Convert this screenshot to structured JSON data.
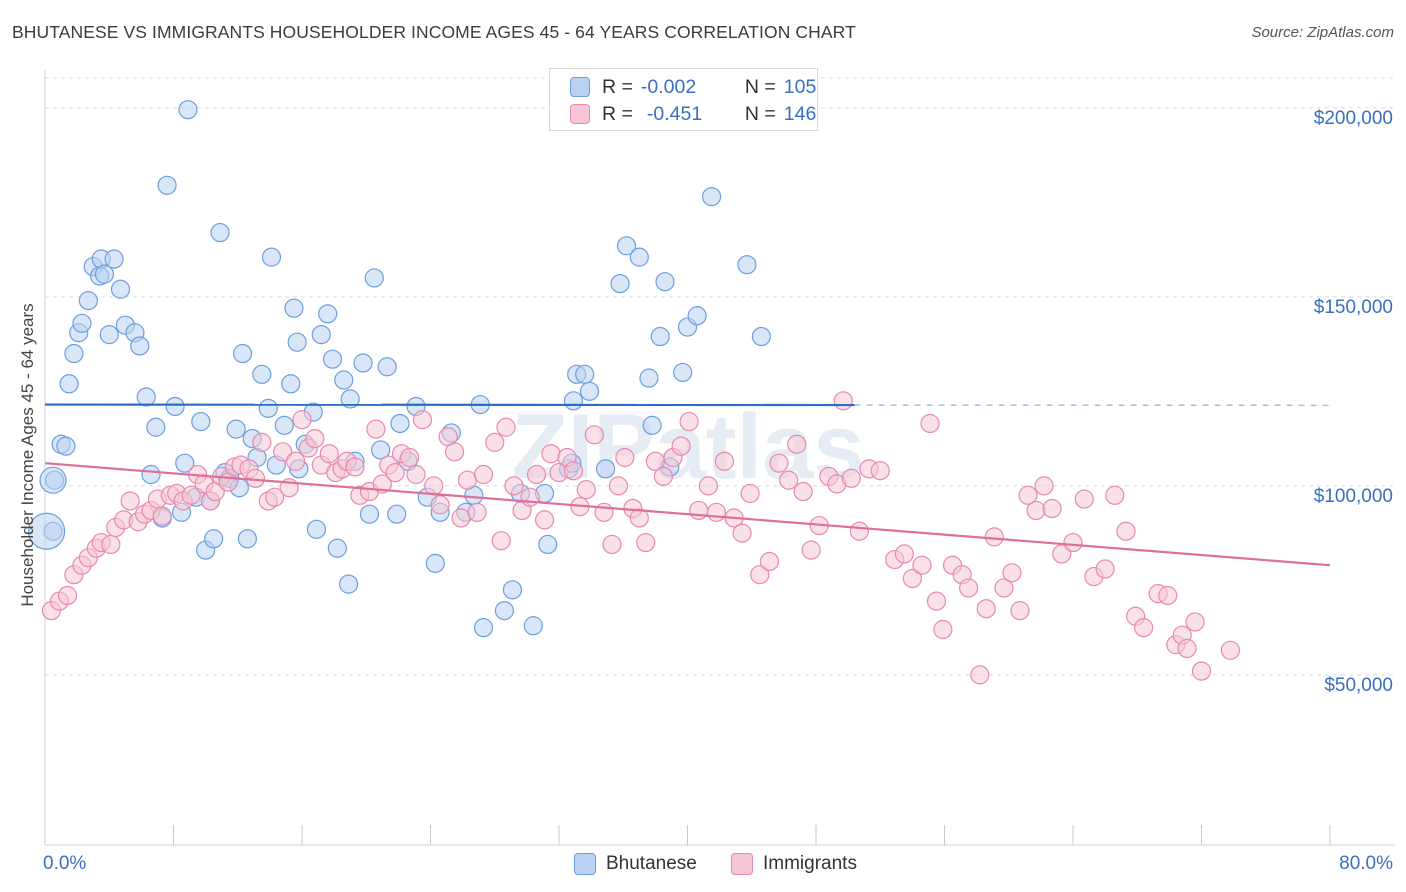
{
  "title": "BHUTANESE VS IMMIGRANTS HOUSEHOLDER INCOME AGES 45 - 64 YEARS CORRELATION CHART",
  "source": "Source: ZipAtlas.com",
  "watermark": "ZIPatlas",
  "colors": {
    "blue": "#6a9fdf",
    "blue_fill": "#b9d2f1",
    "blue_line": "#2a6fc4",
    "pink": "#e889ac",
    "pink_fill": "#f6c6d6",
    "pink_line": "#df6f98",
    "tick_text": "#3a6fc0",
    "grid": "#d7dbe2"
  },
  "stats": [
    {
      "r_label": "R =",
      "r_value": "-0.002",
      "n_label": "N =",
      "n_value": "105",
      "color_key": "blue"
    },
    {
      "r_label": "R =",
      "r_value": "-0.451",
      "n_label": "N =",
      "n_value": "146",
      "color_key": "pink"
    }
  ],
  "legend": [
    "Bhutanese",
    "Immigrants"
  ],
  "chart_data": {
    "type": "scatter",
    "title": "BHUTANESE VS IMMIGRANTS HOUSEHOLDER INCOME AGES 45 - 64 YEARS CORRELATION CHART",
    "xlabel": "",
    "ylabel": "Householder Income Ages 45 - 64 years",
    "xlim": [
      0,
      80
    ],
    "ylim": [
      5000,
      210000
    ],
    "x_tick_labels": [
      "0.0%",
      "80.0%"
    ],
    "y_ticks": [
      50000,
      100000,
      150000,
      200000
    ],
    "y_tick_labels": [
      "$50,000",
      "$100,000",
      "$150,000",
      "$200,000"
    ],
    "grid": true,
    "legend_position": "bottom",
    "series": [
      {
        "name": "Bhutanese",
        "trend": {
          "x0": 0,
          "y0": 121500,
          "x1": 80,
          "y1": 121300,
          "solid_until": 50.4
        },
        "points": [
          [
            0.5,
            88000
          ],
          [
            0.6,
            101500
          ],
          [
            1.0,
            111000
          ],
          [
            1.3,
            110500
          ],
          [
            1.5,
            127000
          ],
          [
            1.8,
            135000
          ],
          [
            2.1,
            140500
          ],
          [
            2.3,
            143000
          ],
          [
            2.7,
            149000
          ],
          [
            3.0,
            158000
          ],
          [
            3.4,
            155500
          ],
          [
            3.5,
            160000
          ],
          [
            3.7,
            156000
          ],
          [
            4.0,
            140000
          ],
          [
            4.3,
            160000
          ],
          [
            4.7,
            152000
          ],
          [
            5.0,
            142500
          ],
          [
            5.6,
            140500
          ],
          [
            5.9,
            137000
          ],
          [
            6.3,
            123500
          ],
          [
            6.6,
            103000
          ],
          [
            6.9,
            115500
          ],
          [
            7.3,
            91500
          ],
          [
            7.6,
            179500
          ],
          [
            8.1,
            121000
          ],
          [
            8.5,
            93000
          ],
          [
            8.7,
            106000
          ],
          [
            8.9,
            199500
          ],
          [
            9.4,
            97000
          ],
          [
            9.7,
            117000
          ],
          [
            10.0,
            83000
          ],
          [
            10.3,
            96000
          ],
          [
            10.5,
            86000
          ],
          [
            10.9,
            167000
          ],
          [
            11.2,
            103500
          ],
          [
            11.5,
            102000
          ],
          [
            11.9,
            115000
          ],
          [
            12.1,
            99500
          ],
          [
            12.3,
            135000
          ],
          [
            12.6,
            86000
          ],
          [
            12.9,
            112500
          ],
          [
            13.2,
            107500
          ],
          [
            13.5,
            129500
          ],
          [
            13.9,
            120500
          ],
          [
            14.1,
            160500
          ],
          [
            14.4,
            105500
          ],
          [
            14.9,
            116000
          ],
          [
            15.3,
            127000
          ],
          [
            15.5,
            147000
          ],
          [
            15.7,
            138000
          ],
          [
            15.8,
            104500
          ],
          [
            16.2,
            111000
          ],
          [
            16.7,
            119500
          ],
          [
            16.9,
            88500
          ],
          [
            17.2,
            140000
          ],
          [
            17.6,
            145500
          ],
          [
            17.9,
            133500
          ],
          [
            18.2,
            83500
          ],
          [
            18.6,
            128000
          ],
          [
            19.0,
            123000
          ],
          [
            18.9,
            74000
          ],
          [
            19.3,
            106500
          ],
          [
            19.8,
            132500
          ],
          [
            20.2,
            92500
          ],
          [
            20.5,
            155000
          ],
          [
            20.9,
            109500
          ],
          [
            21.3,
            131500
          ],
          [
            21.9,
            92500
          ],
          [
            22.1,
            116500
          ],
          [
            22.6,
            106500
          ],
          [
            23.1,
            121000
          ],
          [
            23.8,
            97000
          ],
          [
            24.3,
            79500
          ],
          [
            24.6,
            93000
          ],
          [
            25.3,
            114000
          ],
          [
            26.2,
            93000
          ],
          [
            26.7,
            97500
          ],
          [
            27.1,
            121500
          ],
          [
            27.3,
            62500
          ],
          [
            28.6,
            67000
          ],
          [
            29.1,
            72500
          ],
          [
            29.6,
            98000
          ],
          [
            30.4,
            63000
          ],
          [
            31.1,
            98000
          ],
          [
            31.3,
            84500
          ],
          [
            32.6,
            104500
          ],
          [
            32.9,
            122500
          ],
          [
            33.1,
            129500
          ],
          [
            32.8,
            106000
          ],
          [
            33.6,
            129500
          ],
          [
            33.9,
            125000
          ],
          [
            34.9,
            104500
          ],
          [
            35.8,
            153500
          ],
          [
            36.2,
            163500
          ],
          [
            37.0,
            160500
          ],
          [
            37.6,
            128500
          ],
          [
            37.8,
            116000
          ],
          [
            38.3,
            139500
          ],
          [
            38.6,
            154000
          ],
          [
            38.9,
            105000
          ],
          [
            39.7,
            130000
          ],
          [
            40.0,
            142000
          ],
          [
            40.6,
            145000
          ],
          [
            41.5,
            176500
          ],
          [
            43.7,
            158500
          ],
          [
            44.6,
            139500
          ]
        ]
      },
      {
        "name": "Immigrants",
        "trend": {
          "x0": 0,
          "y0": 106000,
          "x1": 80,
          "y1": 79000
        },
        "points": [
          [
            0.4,
            67000
          ],
          [
            0.9,
            69500
          ],
          [
            1.4,
            71000
          ],
          [
            1.8,
            76500
          ],
          [
            2.3,
            79000
          ],
          [
            2.7,
            81000
          ],
          [
            3.2,
            83500
          ],
          [
            3.5,
            85000
          ],
          [
            4.1,
            84500
          ],
          [
            4.4,
            89000
          ],
          [
            4.9,
            91000
          ],
          [
            5.3,
            96000
          ],
          [
            5.8,
            90500
          ],
          [
            6.2,
            92500
          ],
          [
            6.6,
            93500
          ],
          [
            7.0,
            96500
          ],
          [
            7.3,
            92000
          ],
          [
            7.8,
            97500
          ],
          [
            8.2,
            98000
          ],
          [
            8.6,
            96000
          ],
          [
            9.1,
            97500
          ],
          [
            9.5,
            103000
          ],
          [
            9.9,
            100500
          ],
          [
            10.3,
            96000
          ],
          [
            10.6,
            98500
          ],
          [
            11.0,
            102500
          ],
          [
            11.4,
            101000
          ],
          [
            11.8,
            105000
          ],
          [
            12.2,
            105500
          ],
          [
            12.7,
            104500
          ],
          [
            13.1,
            102000
          ],
          [
            13.5,
            111500
          ],
          [
            13.9,
            96000
          ],
          [
            14.3,
            97000
          ],
          [
            14.8,
            109000
          ],
          [
            15.2,
            99500
          ],
          [
            15.6,
            106500
          ],
          [
            16.0,
            117500
          ],
          [
            16.4,
            110000
          ],
          [
            16.8,
            112500
          ],
          [
            17.2,
            105500
          ],
          [
            17.7,
            108500
          ],
          [
            18.1,
            103500
          ],
          [
            18.5,
            104500
          ],
          [
            18.8,
            106500
          ],
          [
            19.3,
            105000
          ],
          [
            19.6,
            97500
          ],
          [
            20.2,
            98500
          ],
          [
            20.6,
            115000
          ],
          [
            21.0,
            100500
          ],
          [
            21.4,
            105500
          ],
          [
            21.8,
            103500
          ],
          [
            22.2,
            108500
          ],
          [
            22.7,
            107500
          ],
          [
            23.1,
            103000
          ],
          [
            23.5,
            117500
          ],
          [
            24.2,
            100000
          ],
          [
            24.6,
            95000
          ],
          [
            25.1,
            113000
          ],
          [
            25.5,
            109000
          ],
          [
            25.9,
            91500
          ],
          [
            26.3,
            101500
          ],
          [
            26.9,
            93000
          ],
          [
            27.3,
            103000
          ],
          [
            28.0,
            111500
          ],
          [
            28.4,
            85500
          ],
          [
            28.7,
            115500
          ],
          [
            29.2,
            100000
          ],
          [
            29.7,
            93500
          ],
          [
            30.2,
            97000
          ],
          [
            30.6,
            103000
          ],
          [
            31.1,
            91000
          ],
          [
            31.5,
            108500
          ],
          [
            32.0,
            103500
          ],
          [
            32.5,
            107500
          ],
          [
            32.9,
            104000
          ],
          [
            33.3,
            94500
          ],
          [
            33.7,
            99000
          ],
          [
            34.2,
            113500
          ],
          [
            34.8,
            93000
          ],
          [
            35.3,
            84500
          ],
          [
            35.7,
            100000
          ],
          [
            36.1,
            107500
          ],
          [
            36.6,
            94000
          ],
          [
            37.0,
            91500
          ],
          [
            37.4,
            85000
          ],
          [
            38.0,
            106500
          ],
          [
            38.5,
            102500
          ],
          [
            39.1,
            107500
          ],
          [
            39.6,
            110500
          ],
          [
            40.1,
            117000
          ],
          [
            40.7,
            93500
          ],
          [
            41.3,
            100000
          ],
          [
            41.8,
            93000
          ],
          [
            42.3,
            106500
          ],
          [
            42.9,
            91500
          ],
          [
            43.4,
            87500
          ],
          [
            43.9,
            98000
          ],
          [
            44.5,
            76500
          ],
          [
            45.1,
            80000
          ],
          [
            45.7,
            106000
          ],
          [
            46.3,
            101500
          ],
          [
            46.8,
            111000
          ],
          [
            47.2,
            98500
          ],
          [
            47.7,
            83000
          ],
          [
            48.2,
            89500
          ],
          [
            48.8,
            102500
          ],
          [
            49.3,
            100500
          ],
          [
            49.7,
            122500
          ],
          [
            50.2,
            102000
          ],
          [
            50.7,
            88000
          ],
          [
            51.3,
            104500
          ],
          [
            52.0,
            104000
          ],
          [
            52.9,
            80500
          ],
          [
            53.5,
            82000
          ],
          [
            54.0,
            75500
          ],
          [
            54.6,
            79000
          ],
          [
            55.1,
            116500
          ],
          [
            55.5,
            69500
          ],
          [
            55.9,
            62000
          ],
          [
            56.5,
            79000
          ],
          [
            57.1,
            76500
          ],
          [
            57.5,
            73000
          ],
          [
            58.2,
            50000
          ],
          [
            58.6,
            67500
          ],
          [
            59.1,
            86500
          ],
          [
            59.7,
            73000
          ],
          [
            60.2,
            77000
          ],
          [
            60.7,
            67000
          ],
          [
            61.2,
            97500
          ],
          [
            61.7,
            93500
          ],
          [
            62.2,
            100000
          ],
          [
            62.7,
            94000
          ],
          [
            63.3,
            82000
          ],
          [
            64.0,
            85000
          ],
          [
            64.7,
            96500
          ],
          [
            65.3,
            76000
          ],
          [
            66.0,
            78000
          ],
          [
            66.6,
            97500
          ],
          [
            67.3,
            88000
          ],
          [
            67.9,
            65500
          ],
          [
            68.4,
            62500
          ],
          [
            69.3,
            71500
          ],
          [
            69.9,
            71000
          ],
          [
            70.4,
            58000
          ],
          [
            70.8,
            60500
          ],
          [
            71.1,
            57000
          ],
          [
            71.6,
            64000
          ],
          [
            72.0,
            51000
          ],
          [
            73.8,
            56500
          ]
        ]
      }
    ]
  }
}
